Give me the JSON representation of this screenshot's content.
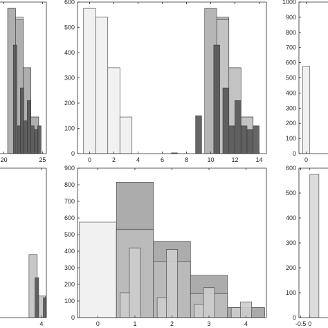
{
  "chart_data": [
    {
      "type": "bar",
      "panel": "top-left (cropped)",
      "xlim": [
        19.5,
        25.5
      ],
      "ylim": [
        0,
        600
      ],
      "xticks": [
        "20",
        "25"
      ],
      "yticks": [],
      "layers": [
        {
          "color": "#c8c8c8",
          "bars": [
            [
              21.0,
              575
            ],
            [
              22.0,
              540
            ],
            [
              23.0,
              340
            ],
            [
              24.0,
              145
            ]
          ]
        },
        {
          "color": "#a9a9a9",
          "bars": [
            [
              21.0,
              575
            ],
            [
              22.0,
              530
            ],
            [
              23.0,
              340
            ],
            [
              24.0,
              145
            ]
          ]
        },
        {
          "color": "#555555",
          "bars": [
            [
              21.45,
              430
            ],
            [
              22.0,
              110
            ],
            [
              22.35,
              260
            ],
            [
              22.8,
              130
            ],
            [
              23.25,
              210
            ],
            [
              23.7,
              110
            ],
            [
              24.15,
              95
            ],
            [
              24.6,
              110
            ]
          ]
        }
      ]
    },
    {
      "type": "bar",
      "panel": "top-middle",
      "xlim": [
        -1,
        14.6
      ],
      "ylim": [
        0,
        600
      ],
      "xticks": [
        "0",
        "2",
        "4",
        "6",
        "8",
        "10",
        "12",
        "14"
      ],
      "yticks": [
        "0",
        "100",
        "200",
        "300",
        "400",
        "500",
        "600"
      ],
      "series": [
        {
          "name": "",
          "color": "#efefef",
          "bars": [
            [
              0,
              575
            ],
            [
              1,
              540
            ],
            [
              2,
              340
            ],
            [
              3,
              145
            ]
          ]
        },
        {
          "name": "",
          "color": "#a9a9a9",
          "bars": [
            [
              10,
              575
            ],
            [
              11,
              540
            ],
            [
              12,
              340
            ],
            [
              13,
              145
            ]
          ]
        },
        {
          "name": "",
          "color": "#c6c6c6",
          "bars": [
            [
              11,
              530
            ],
            [
              12,
              340
            ],
            [
              13,
              145
            ]
          ]
        },
        {
          "name": "",
          "color": "#555555",
          "bars": [
            [
              7,
              3
            ],
            [
              9,
              150
            ],
            [
              10.5,
              430
            ],
            [
              11.25,
              260
            ],
            [
              11.75,
              110
            ],
            [
              12.25,
              210
            ],
            [
              12.75,
              110
            ],
            [
              13.25,
              95
            ],
            [
              13.75,
              110
            ]
          ]
        }
      ]
    },
    {
      "type": "bar",
      "panel": "top-right (cropped)",
      "xlim": [
        -1,
        3
      ],
      "ylim": [
        0,
        1000
      ],
      "xticks": [
        "0"
      ],
      "yticks": [
        "0",
        "100",
        "200",
        "300",
        "400",
        "500",
        "600",
        "700",
        "800",
        "900",
        "1000"
      ],
      "series": [
        {
          "name": "",
          "color": "#efefef",
          "bars": [
            [
              0,
              575
            ]
          ]
        }
      ]
    },
    {
      "type": "bar",
      "panel": "bottom-left (cropped)",
      "xlim": [
        -1,
        4.6
      ],
      "ylim": [
        0,
        900
      ],
      "xticks": [
        "4"
      ],
      "yticks": [],
      "series": [
        {
          "name": "",
          "color": "#bdbdbd",
          "bars": [
            [
              3.0,
              380
            ],
            [
              4.0,
              130
            ]
          ]
        },
        {
          "name": "",
          "color": "#555555",
          "bars": [
            [
              3.45,
              240
            ],
            [
              4.45,
              120
            ]
          ]
        }
      ]
    },
    {
      "type": "bar",
      "panel": "bottom-middle",
      "xlim": [
        -0.55,
        4.55
      ],
      "ylim": [
        0,
        900
      ],
      "xticks": [
        "0",
        "1",
        "2",
        "3",
        "4"
      ],
      "yticks": [
        "0",
        "100",
        "200",
        "300",
        "400",
        "500",
        "600",
        "700",
        "800",
        "900"
      ],
      "series": [
        {
          "name": "",
          "color": "#efefef",
          "bars": [
            [
              0,
              575
            ],
            [
              1,
              540
            ],
            [
              2,
              340
            ],
            [
              3,
              145
            ],
            [
              4,
              60
            ]
          ]
        },
        {
          "name": "",
          "color": "#9d9d9d",
          "bars": [
            [
              1,
              815
            ],
            [
              2,
              460
            ],
            [
              3,
              255
            ],
            [
              4,
              60
            ]
          ]
        },
        {
          "name": "",
          "color": "#bdbdbd",
          "bars": [
            [
              1,
              530
            ],
            [
              2,
              340
            ],
            [
              3,
              145
            ]
          ]
        },
        {
          "name": "",
          "color": "#cdcdcd",
          "bars": [
            [
              0.75,
              150
            ],
            [
              1.0,
              420
            ],
            [
              1.75,
              120
            ],
            [
              2.0,
              410
            ],
            [
              2.75,
              80
            ],
            [
              3.0,
              180
            ],
            [
              3.75,
              60
            ],
            [
              4.0,
              95
            ]
          ]
        }
      ]
    },
    {
      "type": "bar",
      "panel": "bottom-right (cropped)",
      "xlim": [
        -0.6,
        1
      ],
      "ylim": [
        0,
        600
      ],
      "xticks": [
        "-0.5",
        "0"
      ],
      "yticks": [
        "0",
        "100",
        "200",
        "300",
        "400",
        "500",
        "600"
      ],
      "series": [
        {
          "name": "",
          "color": "#d6d6d6",
          "bars": [
            [
              0.25,
              575
            ]
          ]
        }
      ]
    }
  ]
}
